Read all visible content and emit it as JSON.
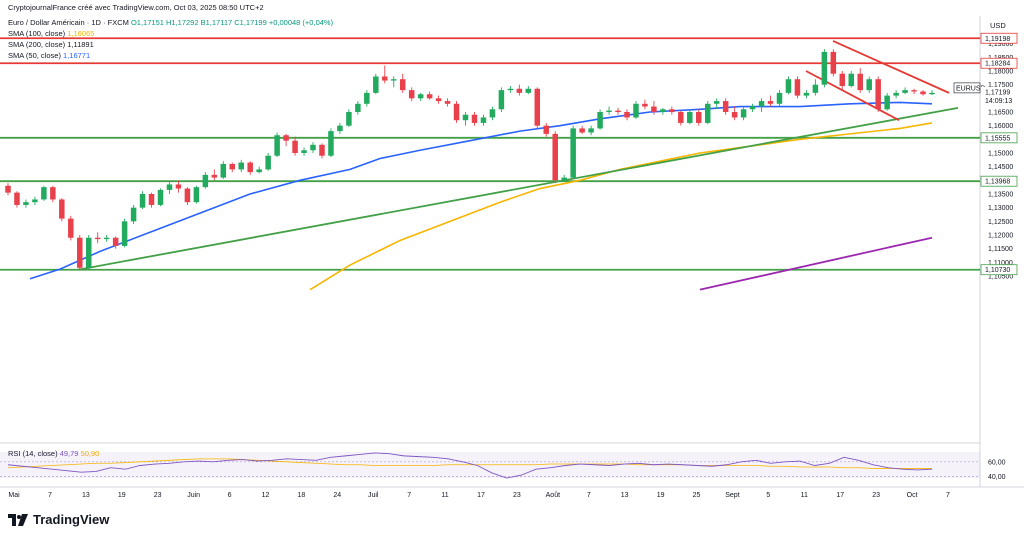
{
  "header": {
    "attribution": "CryptojournalFrance créé avec TradingView.com, Oct 03, 2025 08:50 UTC+2",
    "symbol_line": "Euro / Dollar Américain · 1D · FXCM",
    "ohlc": "O1,17151 H1,17292 B1,17117 C1,17199 +0,00048 (+0,04%)",
    "sma100_label": "SMA (100, close)",
    "sma100_value": "1,16065",
    "sma200_label": "SMA (200, close)",
    "sma200_value": "1,11891",
    "sma50_label": "SMA (50, close)",
    "sma50_value": "1,16771",
    "currency": "USD"
  },
  "rsi": {
    "label": "RSI (14, close)",
    "value": "49,79",
    "value2": "50,90"
  },
  "colors": {
    "up": "#22ab5f",
    "down": "#e8414c",
    "sma50": "#2962ff",
    "sma100": "#f7b500",
    "green_line": "#43a047",
    "red_line": "#e53935",
    "purple": "#9c27b0",
    "rsi": "#7e57c2"
  },
  "logo_text": "TradingView",
  "chart_data": {
    "type": "candlestick",
    "symbol_tag": "EURUSD",
    "last_price": "1,17199",
    "countdown": "14:09:13",
    "ylim": [
      1.045,
      1.195
    ],
    "y_ticks": [
      "1,19000",
      "1,18500",
      "1,18000",
      "1,17500",
      "1,17000",
      "1,16500",
      "1,16000",
      "1,15500",
      "1,15000",
      "1,14500",
      "1,14000",
      "1,13500",
      "1,13000",
      "1,12500",
      "1,12000",
      "1,11500",
      "1,11000",
      "1,10500"
    ],
    "y_tick_values": [
      1.19,
      1.185,
      1.18,
      1.175,
      1.17,
      1.165,
      1.16,
      1.155,
      1.15,
      1.145,
      1.14,
      1.135,
      1.13,
      1.125,
      1.12,
      1.115,
      1.11,
      1.105
    ],
    "x_ticks": [
      "Mai",
      "7",
      "13",
      "19",
      "23",
      "Juin",
      "6",
      "12",
      "18",
      "24",
      "Juil",
      "7",
      "11",
      "17",
      "23",
      "Août",
      "7",
      "13",
      "19",
      "25",
      "Sept",
      "5",
      "11",
      "17",
      "23",
      "Oct",
      "7"
    ],
    "levels": [
      {
        "label": "1,19198",
        "value": 1.19198,
        "color": "#e53935"
      },
      {
        "label": "1,18284",
        "value": 1.18284,
        "color": "#e53935"
      },
      {
        "label": "1,15555",
        "value": 1.15555,
        "color": "#43a047"
      },
      {
        "label": "1,13968",
        "value": 1.13968,
        "color": "#43a047"
      },
      {
        "label": "1,10730",
        "value": 1.1073,
        "color": "#43a047"
      }
    ],
    "candles": [
      [
        1.138,
        1.139,
        1.1345,
        1.1355
      ],
      [
        1.1355,
        1.136,
        1.13,
        1.131
      ],
      [
        1.131,
        1.133,
        1.13,
        1.132
      ],
      [
        1.132,
        1.134,
        1.131,
        1.133
      ],
      [
        1.133,
        1.138,
        1.1325,
        1.1375
      ],
      [
        1.1375,
        1.138,
        1.132,
        1.133
      ],
      [
        1.133,
        1.1335,
        1.125,
        1.126
      ],
      [
        1.126,
        1.127,
        1.118,
        1.119
      ],
      [
        1.119,
        1.12,
        1.107,
        1.108
      ],
      [
        1.108,
        1.12,
        1.1075,
        1.119
      ],
      [
        1.119,
        1.121,
        1.117,
        1.1185
      ],
      [
        1.1185,
        1.12,
        1.1175,
        1.119
      ],
      [
        1.119,
        1.1195,
        1.115,
        1.116
      ],
      [
        1.116,
        1.126,
        1.1155,
        1.125
      ],
      [
        1.125,
        1.131,
        1.124,
        1.13
      ],
      [
        1.13,
        1.136,
        1.1295,
        1.135
      ],
      [
        1.135,
        1.1355,
        1.13,
        1.131
      ],
      [
        1.131,
        1.137,
        1.1305,
        1.1365
      ],
      [
        1.1365,
        1.1395,
        1.135,
        1.1385
      ],
      [
        1.1385,
        1.14,
        1.1355,
        1.137
      ],
      [
        1.137,
        1.1375,
        1.131,
        1.132
      ],
      [
        1.132,
        1.138,
        1.1315,
        1.1375
      ],
      [
        1.1375,
        1.143,
        1.137,
        1.142
      ],
      [
        1.142,
        1.144,
        1.14,
        1.141
      ],
      [
        1.141,
        1.147,
        1.1405,
        1.146
      ],
      [
        1.146,
        1.1465,
        1.143,
        1.144
      ],
      [
        1.144,
        1.1475,
        1.143,
        1.1465
      ],
      [
        1.1465,
        1.147,
        1.142,
        1.143
      ],
      [
        1.143,
        1.145,
        1.1425,
        1.144
      ],
      [
        1.144,
        1.15,
        1.1435,
        1.149
      ],
      [
        1.149,
        1.1575,
        1.1485,
        1.1565
      ],
      [
        1.1565,
        1.157,
        1.1525,
        1.1545
      ],
      [
        1.1545,
        1.156,
        1.149,
        1.15
      ],
      [
        1.15,
        1.152,
        1.149,
        1.151
      ],
      [
        1.151,
        1.154,
        1.15,
        1.153
      ],
      [
        1.153,
        1.1535,
        1.148,
        1.149
      ],
      [
        1.149,
        1.159,
        1.1485,
        1.158
      ],
      [
        1.158,
        1.161,
        1.157,
        1.16
      ],
      [
        1.16,
        1.166,
        1.1595,
        1.165
      ],
      [
        1.165,
        1.169,
        1.164,
        1.168
      ],
      [
        1.168,
        1.173,
        1.167,
        1.172
      ],
      [
        1.172,
        1.179,
        1.1715,
        1.178
      ],
      [
        1.178,
        1.182,
        1.1755,
        1.1765
      ],
      [
        1.1765,
        1.178,
        1.174,
        1.177
      ],
      [
        1.177,
        1.179,
        1.172,
        1.173
      ],
      [
        1.173,
        1.174,
        1.169,
        1.17
      ],
      [
        1.17,
        1.172,
        1.169,
        1.1715
      ],
      [
        1.1715,
        1.1725,
        1.1695,
        1.17
      ],
      [
        1.17,
        1.171,
        1.168,
        1.169
      ],
      [
        1.169,
        1.17,
        1.167,
        1.168
      ],
      [
        1.168,
        1.169,
        1.161,
        1.162
      ],
      [
        1.162,
        1.165,
        1.16,
        1.164
      ],
      [
        1.164,
        1.165,
        1.16,
        1.161
      ],
      [
        1.161,
        1.164,
        1.16,
        1.163
      ],
      [
        1.163,
        1.167,
        1.162,
        1.166
      ],
      [
        1.166,
        1.174,
        1.165,
        1.173
      ],
      [
        1.173,
        1.1745,
        1.172,
        1.1735
      ],
      [
        1.1735,
        1.175,
        1.171,
        1.172
      ],
      [
        1.172,
        1.1745,
        1.1715,
        1.1735
      ],
      [
        1.1735,
        1.174,
        1.159,
        1.16
      ],
      [
        1.16,
        1.161,
        1.156,
        1.157
      ],
      [
        1.157,
        1.158,
        1.139,
        1.14
      ],
      [
        1.14,
        1.142,
        1.1395,
        1.141
      ],
      [
        1.141,
        1.16,
        1.1405,
        1.159
      ],
      [
        1.159,
        1.16,
        1.157,
        1.1575
      ],
      [
        1.1575,
        1.16,
        1.1565,
        1.159
      ],
      [
        1.159,
        1.166,
        1.1585,
        1.165
      ],
      [
        1.165,
        1.167,
        1.164,
        1.1655
      ],
      [
        1.1655,
        1.1665,
        1.164,
        1.165
      ],
      [
        1.165,
        1.166,
        1.162,
        1.163
      ],
      [
        1.163,
        1.169,
        1.1625,
        1.168
      ],
      [
        1.168,
        1.1695,
        1.166,
        1.167
      ],
      [
        1.167,
        1.169,
        1.164,
        1.165
      ],
      [
        1.165,
        1.1665,
        1.164,
        1.166
      ],
      [
        1.166,
        1.167,
        1.164,
        1.165
      ],
      [
        1.165,
        1.1655,
        1.16,
        1.161
      ],
      [
        1.161,
        1.166,
        1.1605,
        1.165
      ],
      [
        1.165,
        1.166,
        1.16,
        1.161
      ],
      [
        1.161,
        1.169,
        1.1605,
        1.168
      ],
      [
        1.168,
        1.17,
        1.166,
        1.169
      ],
      [
        1.169,
        1.17,
        1.164,
        1.165
      ],
      [
        1.165,
        1.167,
        1.162,
        1.163
      ],
      [
        1.163,
        1.167,
        1.162,
        1.166
      ],
      [
        1.166,
        1.168,
        1.165,
        1.167
      ],
      [
        1.167,
        1.17,
        1.165,
        1.169
      ],
      [
        1.169,
        1.171,
        1.167,
        1.168
      ],
      [
        1.168,
        1.173,
        1.167,
        1.172
      ],
      [
        1.172,
        1.178,
        1.1715,
        1.177
      ],
      [
        1.177,
        1.178,
        1.17,
        1.171
      ],
      [
        1.171,
        1.173,
        1.17,
        1.172
      ],
      [
        1.172,
        1.177,
        1.171,
        1.175
      ],
      [
        1.175,
        1.188,
        1.174,
        1.187
      ],
      [
        1.187,
        1.188,
        1.178,
        1.179
      ],
      [
        1.179,
        1.18,
        1.173,
        1.1745
      ],
      [
        1.1745,
        1.18,
        1.174,
        1.179
      ],
      [
        1.179,
        1.181,
        1.172,
        1.173
      ],
      [
        1.173,
        1.178,
        1.172,
        1.177
      ],
      [
        1.177,
        1.178,
        1.165,
        1.166
      ],
      [
        1.166,
        1.172,
        1.1655,
        1.171
      ],
      [
        1.171,
        1.173,
        1.17,
        1.172
      ],
      [
        1.172,
        1.174,
        1.1715,
        1.173
      ],
      [
        1.173,
        1.1735,
        1.1715,
        1.1725
      ],
      [
        1.1725,
        1.173,
        1.171,
        1.1715
      ],
      [
        1.1715,
        1.173,
        1.1712,
        1.172
      ]
    ],
    "candle_x_range": [
      8,
      932
    ],
    "sma50": [
      [
        30,
        1.104
      ],
      [
        60,
        1.1075
      ],
      [
        100,
        1.114
      ],
      [
        150,
        1.121
      ],
      [
        200,
        1.128
      ],
      [
        250,
        1.135
      ],
      [
        300,
        1.14
      ],
      [
        350,
        1.144
      ],
      [
        380,
        1.148
      ],
      [
        420,
        1.151
      ],
      [
        470,
        1.1545
      ],
      [
        520,
        1.158
      ],
      [
        560,
        1.16
      ],
      [
        600,
        1.1625
      ],
      [
        650,
        1.165
      ],
      [
        700,
        1.166
      ],
      [
        740,
        1.167
      ],
      [
        800,
        1.167
      ],
      [
        850,
        1.168
      ],
      [
        900,
        1.1685
      ],
      [
        932,
        1.168
      ]
    ],
    "sma100": [
      [
        310,
        1.1
      ],
      [
        350,
        1.109
      ],
      [
        400,
        1.118
      ],
      [
        450,
        1.125
      ],
      [
        500,
        1.132
      ],
      [
        540,
        1.137
      ],
      [
        580,
        1.14
      ],
      [
        620,
        1.144
      ],
      [
        660,
        1.147
      ],
      [
        700,
        1.15
      ],
      [
        740,
        1.152
      ],
      [
        800,
        1.155
      ],
      [
        850,
        1.157
      ],
      [
        900,
        1.159
      ],
      [
        932,
        1.161
      ]
    ],
    "trend_lines": [
      {
        "name": "support",
        "color": "#43a047",
        "from": [
          78,
          1.1073
        ],
        "to": [
          958,
          1.1665
        ]
      },
      {
        "name": "purple",
        "color": "#9c27b0",
        "from": [
          700,
          1.1
        ],
        "to": [
          932,
          1.119
        ]
      },
      {
        "name": "wedge-upper",
        "color": "#e53935",
        "from": [
          833,
          1.191
        ],
        "to": [
          949,
          1.172
        ]
      },
      {
        "name": "wedge-lower",
        "color": "#e53935",
        "from": [
          806,
          1.18
        ],
        "to": [
          899,
          1.162
        ]
      }
    ],
    "rsi_series": [
      56,
      54,
      52,
      50,
      48,
      46,
      47,
      52,
      50,
      55,
      57,
      58,
      60,
      61,
      60,
      62,
      63,
      61,
      62,
      64,
      63,
      62,
      66,
      68,
      70,
      72,
      71,
      68,
      67,
      66,
      64,
      60,
      55,
      45,
      38,
      42,
      50,
      52,
      55,
      57,
      56,
      55,
      57,
      58,
      56,
      57,
      56,
      55,
      54,
      56,
      60,
      62,
      58,
      60,
      61,
      55,
      58,
      66,
      62,
      56,
      52,
      50,
      49,
      50
    ],
    "rsi_ma": [
      52,
      53,
      54,
      55,
      56,
      57,
      58,
      58,
      59,
      60,
      61,
      62,
      63,
      64,
      64,
      64,
      63,
      62,
      61,
      60,
      59,
      58,
      57,
      56,
      56,
      55,
      55,
      55,
      55,
      55,
      56,
      56,
      56,
      56,
      56,
      56,
      56,
      57,
      57,
      57,
      57,
      57,
      57,
      56,
      56,
      56,
      56,
      55,
      55,
      55,
      55,
      55,
      54,
      54,
      53,
      53,
      53,
      52,
      52,
      51,
      51,
      51,
      51,
      51
    ],
    "rsi_ticks": [
      "60,00",
      "40,00"
    ]
  }
}
